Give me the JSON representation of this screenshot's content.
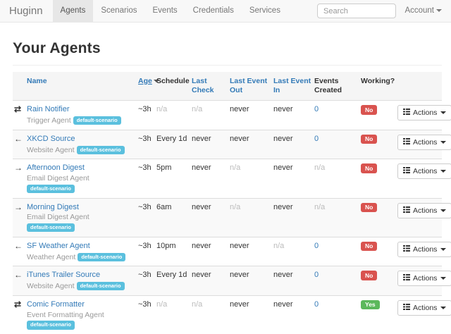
{
  "navbar": {
    "brand": "Huginn",
    "items": [
      {
        "label": "Agents",
        "active": true
      },
      {
        "label": "Scenarios",
        "active": false
      },
      {
        "label": "Events",
        "active": false
      },
      {
        "label": "Credentials",
        "active": false
      },
      {
        "label": "Services",
        "active": false
      }
    ],
    "search_placeholder": "Search",
    "account_label": "Account"
  },
  "page": {
    "title": "Your Agents"
  },
  "table": {
    "columns": [
      {
        "key": "name",
        "label": "Name",
        "link": true,
        "sorted": false
      },
      {
        "key": "age",
        "label": "Age",
        "link": true,
        "sorted": true
      },
      {
        "key": "schedule",
        "label": "Schedule",
        "link": false,
        "sorted": false
      },
      {
        "key": "last_check",
        "label": "Last Check",
        "link": true,
        "sorted": false
      },
      {
        "key": "last_event_out",
        "label": "Last Event Out",
        "link": true,
        "sorted": false
      },
      {
        "key": "last_event_in",
        "label": "Last Event In",
        "link": true,
        "sorted": false
      },
      {
        "key": "events_created",
        "label": "Events Created",
        "link": false,
        "sorted": false
      },
      {
        "key": "working",
        "label": "Working?",
        "link": false,
        "sorted": false
      }
    ],
    "actions_label": "Actions",
    "scenario_badge": "default-scenario",
    "rows": [
      {
        "direction": "transfer",
        "name": "Rain Notifier",
        "type": "Trigger Agent",
        "age": "~3h",
        "schedule": "n/a",
        "last_check": "n/a",
        "last_event_out": "never",
        "last_event_in": "never",
        "events_created": "0",
        "working": "No"
      },
      {
        "direction": "left",
        "name": "XKCD Source",
        "type": "Website Agent",
        "age": "~3h",
        "schedule": "Every 1d",
        "last_check": "never",
        "last_event_out": "never",
        "last_event_in": "never",
        "events_created": "0",
        "working": "No"
      },
      {
        "direction": "right",
        "name": "Afternoon Digest",
        "type": "Email Digest Agent",
        "age": "~3h",
        "schedule": "5pm",
        "last_check": "never",
        "last_event_out": "n/a",
        "last_event_in": "never",
        "events_created": "n/a",
        "working": "No"
      },
      {
        "direction": "right",
        "name": "Morning Digest",
        "type": "Email Digest Agent",
        "age": "~3h",
        "schedule": "6am",
        "last_check": "never",
        "last_event_out": "n/a",
        "last_event_in": "never",
        "events_created": "n/a",
        "working": "No"
      },
      {
        "direction": "left",
        "name": "SF Weather Agent",
        "type": "Weather Agent",
        "age": "~3h",
        "schedule": "10pm",
        "last_check": "never",
        "last_event_out": "never",
        "last_event_in": "n/a",
        "events_created": "0",
        "working": "No"
      },
      {
        "direction": "left",
        "name": "iTunes Trailer Source",
        "type": "Website Agent",
        "age": "~3h",
        "schedule": "Every 1d",
        "last_check": "never",
        "last_event_out": "never",
        "last_event_in": "never",
        "events_created": "0",
        "working": "No"
      },
      {
        "direction": "transfer",
        "name": "Comic Formatter",
        "type": "Event Formatting Agent",
        "age": "~3h",
        "schedule": "n/a",
        "last_check": "n/a",
        "last_event_out": "never",
        "last_event_in": "never",
        "events_created": "0",
        "working": "Yes"
      }
    ]
  },
  "colors": {
    "link": "#337ab7",
    "badge_info": "#5bc0de",
    "working_no": "#d9534f",
    "working_yes": "#5cb85c",
    "navbar_bg": "#f8f8f8",
    "header_bg": "#f5f5f5"
  },
  "icons": {
    "transfer": "⇄",
    "left": "←",
    "right": "→"
  }
}
